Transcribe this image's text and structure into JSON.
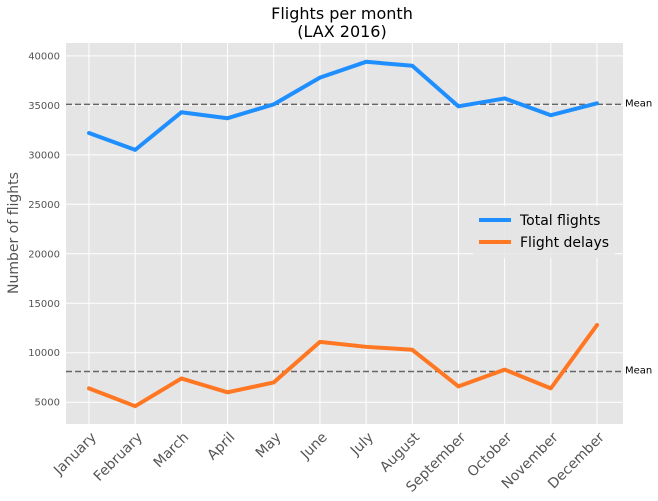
{
  "chart_data": {
    "type": "line",
    "title": "Flights per month",
    "subtitle": "(LAX 2016)",
    "xlabel": "",
    "ylabel": "Number of flights",
    "categories": [
      "January",
      "February",
      "March",
      "April",
      "May",
      "June",
      "July",
      "August",
      "September",
      "October",
      "November",
      "December"
    ],
    "y_ticks": [
      5000,
      10000,
      15000,
      20000,
      25000,
      30000,
      35000,
      40000
    ],
    "ylim": [
      2800,
      41300
    ],
    "grid": true,
    "legend_position": "center-right",
    "series": [
      {
        "name": "Total flights",
        "color": "#1f8fff",
        "values": [
          32200,
          30500,
          34300,
          33700,
          35100,
          37800,
          39400,
          39000,
          34900,
          35700,
          34000,
          35200
        ]
      },
      {
        "name": "Flight delays",
        "color": "#ff7722",
        "values": [
          6400,
          4600,
          7400,
          6000,
          7000,
          11100,
          10600,
          10300,
          6600,
          8300,
          6400,
          12800
        ]
      }
    ],
    "mean_lines": [
      {
        "label": "Mean",
        "value": 35100
      },
      {
        "label": "Mean",
        "value": 8100
      }
    ]
  }
}
